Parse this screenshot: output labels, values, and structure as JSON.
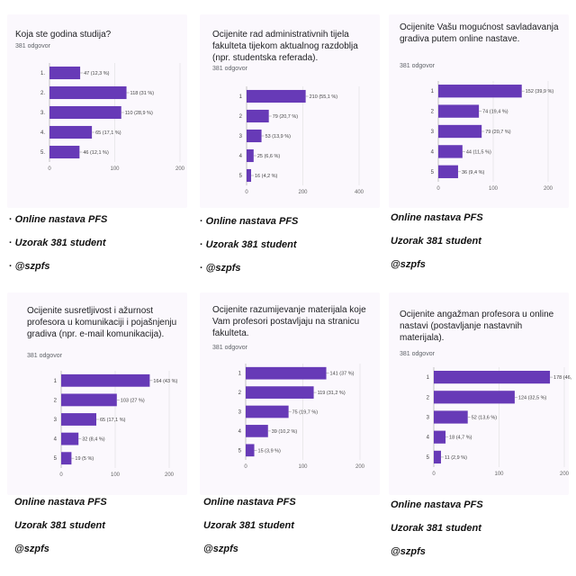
{
  "chart_data": [
    {
      "type": "bar",
      "title": "Koja ste godina studija?",
      "responses": "381 odgovor",
      "categories": [
        "1.",
        "2.",
        "3.",
        "4.",
        "5."
      ],
      "values": [
        47,
        118,
        110,
        65,
        46
      ],
      "value_labels": [
        "47 (12,3 %)",
        "118 (31 %)",
        "110 (28,9 %)",
        "65 (17,1 %)",
        "46 (12,1 %)"
      ],
      "ticks": [
        0,
        100,
        200
      ],
      "xlim": [
        0,
        200
      ],
      "color": "#673ab7"
    },
    {
      "type": "bar",
      "title": "Ocijenite rad administrativnih tijela fakulteta tijekom aktualnog razdoblja (npr. studentska referada).",
      "responses": "381 odgovor",
      "categories": [
        "1",
        "2",
        "3",
        "4",
        "5"
      ],
      "values": [
        210,
        79,
        53,
        25,
        16
      ],
      "value_labels": [
        "210 (55,1 %)",
        "79 (20,7 %)",
        "53 (13,9 %)",
        "25 (6,6 %)",
        "16 (4,2 %)"
      ],
      "ticks": [
        0,
        200,
        400
      ],
      "xlim": [
        0,
        400
      ],
      "color": "#673ab7"
    },
    {
      "type": "bar",
      "title": "Ocijenite Vašu mogućnost savladavanja gradiva putem online nastave.",
      "responses": "381 odgovor",
      "categories": [
        "1",
        "2",
        "3",
        "4",
        "5"
      ],
      "values": [
        152,
        74,
        79,
        44,
        36
      ],
      "value_labels": [
        "152 (39,9 %)",
        "74 (19,4 %)",
        "79 (20,7 %)",
        "44 (11,5 %)",
        "36 (9,4 %)"
      ],
      "ticks": [
        0,
        100,
        200
      ],
      "xlim": [
        0,
        200
      ],
      "color": "#673ab7"
    },
    {
      "type": "bar",
      "title": "Ocijenite susretljivost i ažurnost profesora u komunikaciji i pojašnjenju gradiva (npr. e-mail komunikacija).",
      "responses": "381 odgovor",
      "categories": [
        "1",
        "2",
        "3",
        "4",
        "5"
      ],
      "values": [
        164,
        103,
        65,
        32,
        19
      ],
      "value_labels": [
        "164 (43 %)",
        "103 (27 %)",
        "65 (17,1 %)",
        "32 (8,4 %)",
        "19 (5 %)"
      ],
      "ticks": [
        0,
        100,
        200
      ],
      "xlim": [
        0,
        200
      ],
      "color": "#673ab7"
    },
    {
      "type": "bar",
      "title": "Ocijenite razumijevanje materijala koje Vam profesori postavljaju na stranicu fakulteta.",
      "responses": "381 odgovor",
      "categories": [
        "1",
        "2",
        "3",
        "4",
        "5"
      ],
      "values": [
        141,
        119,
        75,
        39,
        15
      ],
      "value_labels": [
        "141 (37 %)",
        "119 (31,2 %)",
        "75 (19,7 %)",
        "39 (10,2 %)",
        "15 (3,9 %)"
      ],
      "ticks": [
        0,
        100,
        200
      ],
      "xlim": [
        0,
        200
      ],
      "color": "#673ab7"
    },
    {
      "type": "bar",
      "title": "Ocijenite angažman profesora u online nastavi (postavljanje nastavnih materijala).",
      "responses": "381 odgovor",
      "categories": [
        "1",
        "2",
        "3",
        "4",
        "5"
      ],
      "values": [
        178,
        124,
        52,
        18,
        11
      ],
      "value_labels": [
        "178 (46,",
        "124 (32,5 %)",
        "52 (13,6 %)",
        "18 (4,7 %)",
        "11 (2,9 %)"
      ],
      "ticks": [
        0,
        100,
        200
      ],
      "xlim": [
        0,
        200
      ],
      "color": "#673ab7"
    }
  ],
  "captions": [
    {
      "bullet": "·",
      "lines": [
        "Online nastava PFS",
        "Uzorak 381 student",
        "@szpfs"
      ]
    },
    {
      "bullet": "·",
      "lines": [
        "Online nastava PFS",
        "Uzorak 381 student",
        "@szpfs"
      ]
    },
    {
      "bullet": "",
      "lines": [
        "Online nastava PFS",
        "Uzorak 381 student",
        "@szpfs"
      ]
    },
    {
      "bullet": "",
      "lines": [
        "Online nastava PFS",
        "Uzorak 381 student",
        "@szpfs"
      ]
    },
    {
      "bullet": "",
      "lines": [
        "Online nastava PFS",
        "Uzorak 381 student",
        "@szpfs"
      ]
    },
    {
      "bullet": "",
      "lines": [
        "Online nastava PFS",
        "Uzorak 381 student",
        "@szpfs"
      ]
    }
  ]
}
